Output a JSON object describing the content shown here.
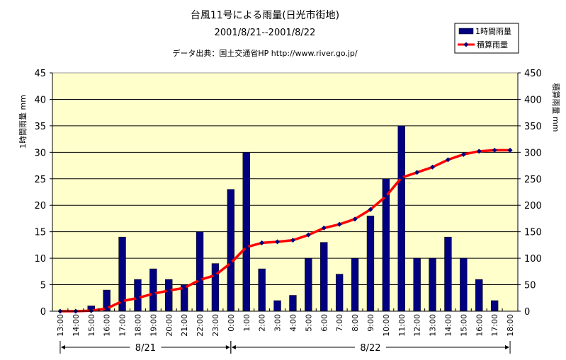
{
  "chart_data": {
    "type": "bar+line",
    "title": "台風11号による雨量(日光市街地)",
    "subtitle": "2001/8/21--2001/8/22",
    "source": "データ出典：国土交通省HP  http://www.river.go.jp/",
    "categories": [
      "13:00",
      "14:00",
      "15:00",
      "16:00",
      "17:00",
      "18:00",
      "19:00",
      "20:00",
      "21:00",
      "22:00",
      "23:00",
      "0:00",
      "1:00",
      "2:00",
      "3:00",
      "4:00",
      "5:00",
      "6:00",
      "7:00",
      "8:00",
      "9:00",
      "10:00",
      "11:00",
      "12:00",
      "13:00",
      "14:00",
      "15:00",
      "16:00",
      "17:00",
      "18:00"
    ],
    "series": [
      {
        "name": "1時間雨量",
        "type": "bar",
        "axis": "left",
        "color": "#000080",
        "values": [
          0,
          0,
          1,
          4,
          14,
          6,
          8,
          6,
          5,
          15,
          9,
          23,
          30,
          8,
          2,
          3,
          10,
          13,
          7,
          10,
          18,
          25,
          35,
          10,
          10,
          14,
          10,
          6,
          2,
          0
        ]
      },
      {
        "name": "積算雨量",
        "type": "line",
        "axis": "right",
        "color": "#ff0000",
        "marker_color": "#000080",
        "values": [
          0,
          0,
          1,
          5,
          19,
          25,
          33,
          39,
          44,
          59,
          68,
          91,
          121,
          129,
          131,
          134,
          144,
          157,
          164,
          174,
          192,
          217,
          252,
          262,
          272,
          286,
          296,
          302,
          304,
          304
        ]
      }
    ],
    "ylabel": "1時間雨量 mm",
    "y2label": "積算雨量 mm",
    "ylim": [
      0,
      45
    ],
    "y2lim": [
      0,
      450
    ],
    "yticks": [
      "0",
      "5",
      "10",
      "15",
      "20",
      "25",
      "30",
      "35",
      "40",
      "45"
    ],
    "y2ticks": [
      "0",
      "50",
      "100",
      "150",
      "200",
      "250",
      "300",
      "350",
      "400",
      "450"
    ],
    "date_groups": [
      {
        "label": "8/21",
        "from": "13:00",
        "to": "23:00"
      },
      {
        "label": "8/22",
        "from": "0:00",
        "to": "18:00"
      }
    ],
    "grid": true,
    "legend_position": "top-right",
    "plot_background": "#ffffcc"
  }
}
